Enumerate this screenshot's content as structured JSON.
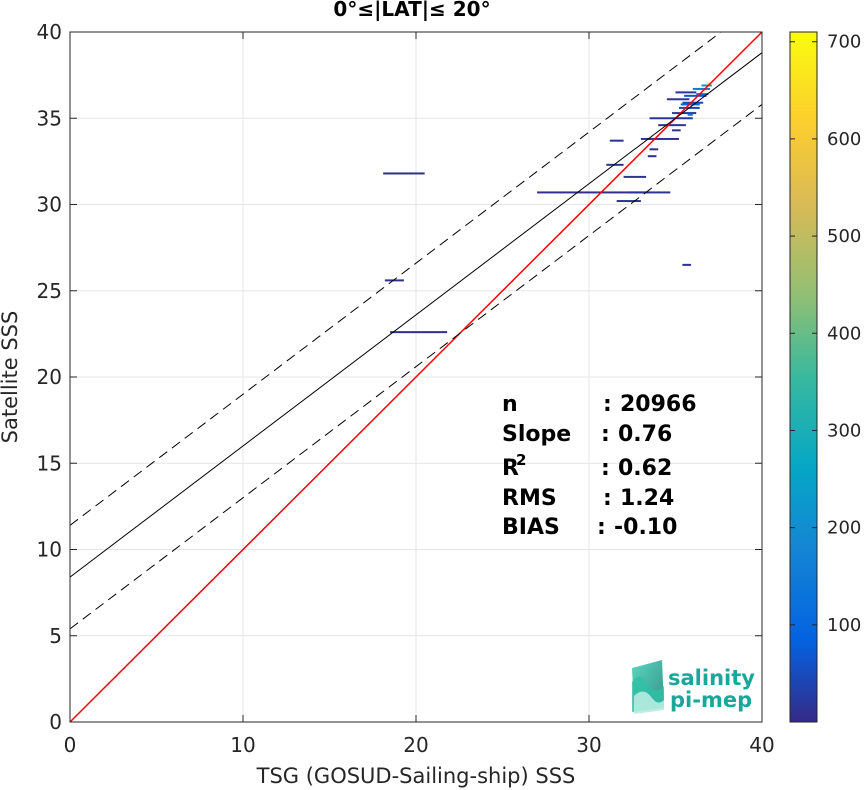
{
  "chart_data": {
    "type": "scatter",
    "title": "0°≤|LAT|≤ 20°",
    "xlabel": "TSG (GOSUD-Sailing-ship) SSS",
    "ylabel": "Satellite SSS",
    "xlim": [
      0,
      40
    ],
    "ylim": [
      0,
      40
    ],
    "xticks": [
      0,
      10,
      20,
      30,
      40
    ],
    "yticks": [
      0,
      5,
      10,
      15,
      20,
      25,
      30,
      35,
      40
    ],
    "grid": true,
    "colorbar": {
      "range": [
        0,
        710
      ],
      "ticks": [
        100,
        200,
        300,
        400,
        500,
        600,
        700
      ],
      "colormap": "parula"
    },
    "lines": [
      {
        "name": "one-to-one",
        "color": "#ff0000",
        "style": "solid",
        "intercept": 0,
        "slope": 1
      },
      {
        "name": "regression",
        "color": "#000000",
        "style": "solid",
        "intercept": 8.4,
        "slope": 0.76
      },
      {
        "name": "upper-bound",
        "color": "#000000",
        "style": "dashed",
        "intercept": 11.4,
        "slope": 0.76
      },
      {
        "name": "lower-bound",
        "color": "#000000",
        "style": "dashed",
        "intercept": 5.4,
        "slope": 0.76
      }
    ],
    "segments": [
      {
        "x1": 18.1,
        "x2": 20.5,
        "y": 31.8,
        "count": 5
      },
      {
        "x1": 18.2,
        "x2": 19.3,
        "y": 25.6,
        "count": 8
      },
      {
        "x1": 18.5,
        "x2": 21.8,
        "y": 22.6,
        "count": 6
      },
      {
        "x1": 27.0,
        "x2": 30.5,
        "y": 30.7,
        "count": 6
      },
      {
        "x1": 30.5,
        "x2": 33.5,
        "y": 30.7,
        "count": 4
      },
      {
        "x1": 32.3,
        "x2": 34.7,
        "y": 30.7,
        "count": 12
      },
      {
        "x1": 31.6,
        "x2": 33.0,
        "y": 30.2,
        "count": 14
      },
      {
        "x1": 32.0,
        "x2": 33.3,
        "y": 31.6,
        "count": 12
      },
      {
        "x1": 31.0,
        "x2": 32.0,
        "y": 32.3,
        "count": 10
      },
      {
        "x1": 31.2,
        "x2": 32.0,
        "y": 33.7,
        "count": 12
      },
      {
        "x1": 33.5,
        "x2": 34.0,
        "y": 33.2,
        "count": 8
      },
      {
        "x1": 33.4,
        "x2": 33.9,
        "y": 32.8,
        "count": 8
      },
      {
        "x1": 33.0,
        "x2": 35.2,
        "y": 33.8,
        "count": 10
      },
      {
        "x1": 34.0,
        "x2": 35.6,
        "y": 34.6,
        "count": 15
      },
      {
        "x1": 33.5,
        "x2": 36.0,
        "y": 35.0,
        "count": 20
      },
      {
        "x1": 34.8,
        "x2": 36.2,
        "y": 35.3,
        "count": 25
      },
      {
        "x1": 35.2,
        "x2": 36.4,
        "y": 35.6,
        "count": 35
      },
      {
        "x1": 35.4,
        "x2": 36.6,
        "y": 35.9,
        "count": 45
      },
      {
        "x1": 34.5,
        "x2": 35.8,
        "y": 36.1,
        "count": 15
      },
      {
        "x1": 35.5,
        "x2": 36.8,
        "y": 36.3,
        "count": 60
      },
      {
        "x1": 35.0,
        "x2": 36.2,
        "y": 36.5,
        "count": 18
      },
      {
        "x1": 36.0,
        "x2": 37.0,
        "y": 36.7,
        "count": 140
      },
      {
        "x1": 36.5,
        "x2": 37.1,
        "y": 36.9,
        "count": 220
      },
      {
        "x1": 35.3,
        "x2": 36.4,
        "y": 35.8,
        "count": 90
      },
      {
        "x1": 36.8,
        "x2": 37.0,
        "y": 37.0,
        "count": 650
      },
      {
        "x1": 36.2,
        "x2": 36.9,
        "y": 36.4,
        "count": 120
      },
      {
        "x1": 35.7,
        "x2": 36.0,
        "y": 35.2,
        "count": 140
      },
      {
        "x1": 34.8,
        "x2": 35.3,
        "y": 34.3,
        "count": 10
      },
      {
        "x1": 35.4,
        "x2": 35.9,
        "y": 26.5,
        "count": 10
      }
    ]
  },
  "stats": {
    "rows": [
      {
        "label": "n",
        "sep": ":",
        "value": "20966"
      },
      {
        "label": "Slope",
        "sep": ":",
        "value": "0.76"
      },
      {
        "label": "R",
        "sup": "2",
        "sep": ":",
        "value": "0.62"
      },
      {
        "label": "RMS",
        "sep": ":",
        "value": "1.24"
      },
      {
        "label": "BIAS",
        "sep": ":",
        "value": "-0.10"
      }
    ]
  },
  "logo": {
    "line1": "salinity",
    "line2": "pi-mep"
  }
}
